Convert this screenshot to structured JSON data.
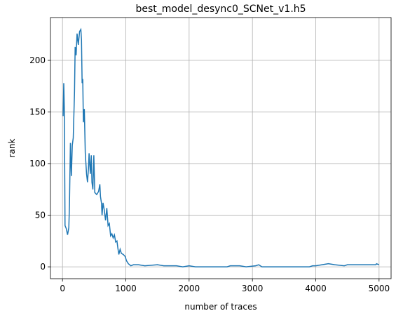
{
  "chart_data": {
    "type": "line",
    "title": "best_model_desync0_SCNet_v1.h5",
    "xlabel": "number of traces",
    "ylabel": "rank",
    "color": "#1f77b4",
    "grid": true,
    "xlim": [
      -190,
      5190
    ],
    "ylim": [
      -11.5,
      241.5
    ],
    "xticks": [
      0,
      1000,
      2000,
      3000,
      4000,
      5000
    ],
    "yticks": [
      0,
      50,
      100,
      150,
      200
    ],
    "x": [
      10,
      20,
      30,
      40,
      60,
      80,
      100,
      110,
      125,
      140,
      155,
      170,
      190,
      200,
      215,
      230,
      250,
      270,
      290,
      300,
      310,
      320,
      330,
      345,
      360,
      380,
      395,
      410,
      420,
      440,
      455,
      465,
      480,
      495,
      510,
      540,
      570,
      590,
      600,
      615,
      625,
      640,
      660,
      680,
      700,
      720,
      740,
      760,
      780,
      800,
      820,
      840,
      860,
      875,
      890,
      910,
      930,
      960,
      990,
      1010,
      1040,
      1080,
      1120,
      1200,
      1300,
      1500,
      1600,
      1800,
      1900,
      2000,
      2100,
      2600,
      2650,
      2800,
      2900,
      3050,
      3100,
      3150,
      3900,
      3950,
      4000,
      4100,
      4200,
      4300,
      4450,
      4500,
      4950,
      4960,
      5000
    ],
    "values": [
      146,
      178,
      150,
      40,
      37,
      31,
      38,
      60,
      120,
      88,
      118,
      125,
      170,
      213,
      205,
      226,
      215,
      228,
      230,
      220,
      178,
      182,
      140,
      153,
      110,
      90,
      82,
      95,
      110,
      90,
      108,
      82,
      75,
      108,
      72,
      70,
      73,
      80,
      68,
      62,
      50,
      62,
      55,
      45,
      57,
      40,
      42,
      30,
      32,
      28,
      31,
      24,
      25,
      18,
      12,
      17,
      13,
      12,
      10,
      6,
      3,
      1,
      2,
      2,
      1,
      2,
      1,
      1,
      0,
      1,
      0,
      0,
      1,
      1,
      0,
      1,
      2,
      0,
      0,
      1,
      1,
      2,
      3,
      2,
      1,
      2,
      2,
      3,
      2
    ]
  }
}
